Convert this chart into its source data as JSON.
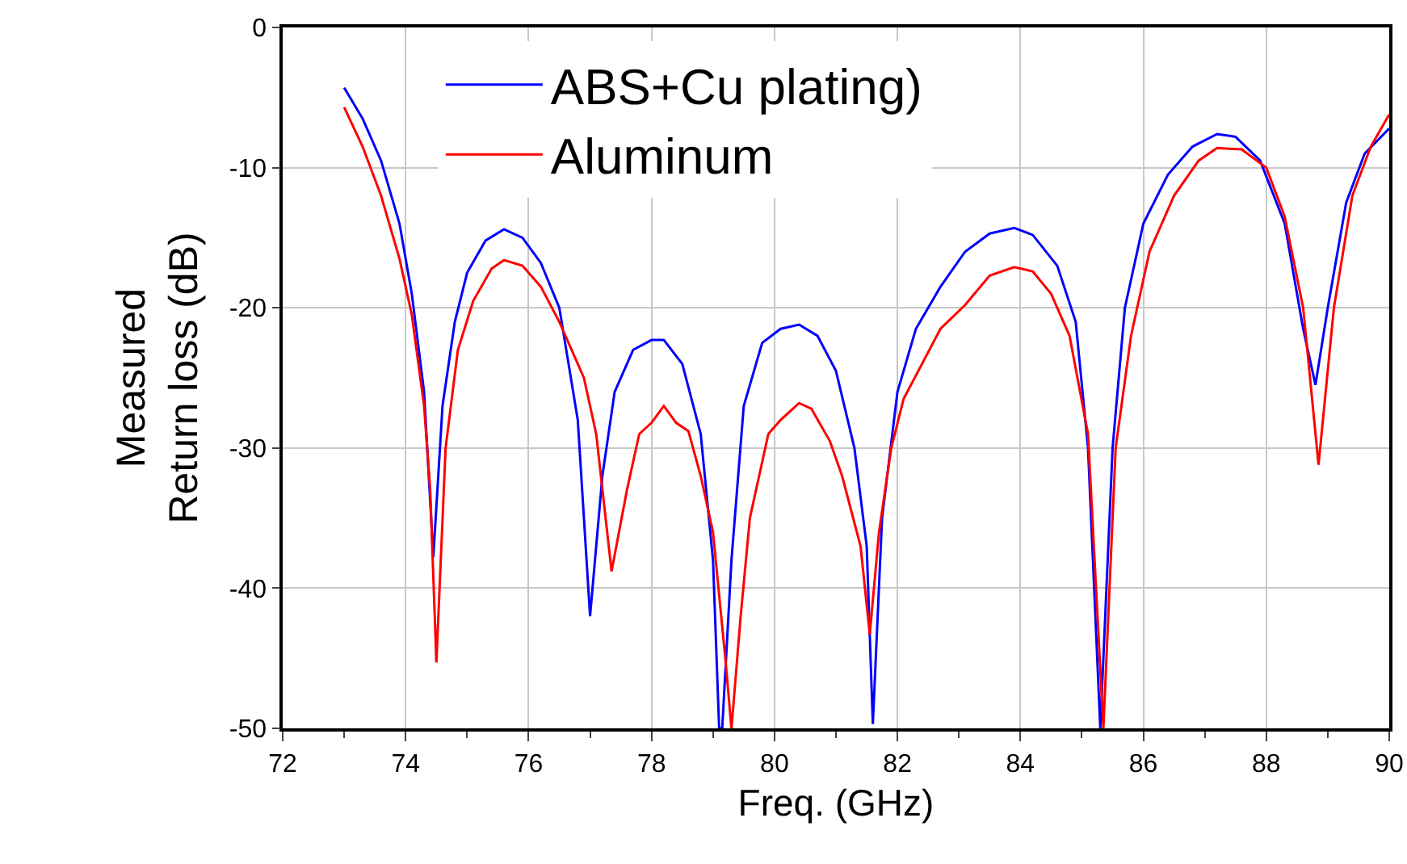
{
  "chart_data": {
    "type": "line",
    "xlabel": "Freq. (GHz)",
    "ylabel": "Measured\nReturn loss (dB)",
    "xlim": [
      72,
      90
    ],
    "xticks": [
      72,
      74,
      76,
      78,
      80,
      82,
      84,
      86,
      88,
      90
    ],
    "ylim": [
      -50,
      0
    ],
    "yticks": [
      -50,
      -40,
      -30,
      -20,
      -10,
      0
    ],
    "grid": true,
    "legend": "top",
    "line_style": "solid",
    "marker": "none",
    "series": [
      {
        "name": "ABS+Cu plating)",
        "color": "#0000ff",
        "x": [
          73.0,
          73.3,
          73.6,
          73.9,
          74.1,
          74.3,
          74.45,
          74.6,
          74.8,
          75.0,
          75.3,
          75.6,
          75.9,
          76.2,
          76.5,
          76.8,
          77.0,
          77.2,
          77.4,
          77.7,
          78.0,
          78.2,
          78.5,
          78.8,
          79.0,
          79.1,
          79.15,
          79.3,
          79.5,
          79.8,
          80.1,
          80.4,
          80.7,
          81.0,
          81.3,
          81.5,
          81.6,
          81.75,
          82.0,
          82.3,
          82.7,
          83.1,
          83.5,
          83.9,
          84.2,
          84.6,
          84.9,
          85.1,
          85.3,
          85.5,
          85.7,
          86.0,
          86.4,
          86.8,
          87.2,
          87.5,
          87.9,
          88.3,
          88.6,
          88.8,
          89.0,
          89.3,
          89.6,
          90.0
        ],
        "values": [
          -4.3,
          -6.5,
          -9.5,
          -14,
          -19,
          -26,
          -37.8,
          -27,
          -21,
          -17.5,
          -15.2,
          -14.4,
          -15,
          -16.8,
          -20,
          -28,
          -42,
          -32,
          -26,
          -23,
          -22.3,
          -22.3,
          -24,
          -29,
          -38,
          -50,
          -50,
          -38,
          -27,
          -22.5,
          -21.5,
          -21.2,
          -22,
          -24.5,
          -30,
          -37,
          -49.7,
          -35,
          -26,
          -21.5,
          -18.5,
          -16,
          -14.7,
          -14.3,
          -14.8,
          -17,
          -21,
          -30,
          -50,
          -30,
          -20,
          -14,
          -10.5,
          -8.5,
          -7.6,
          -7.8,
          -9.5,
          -14,
          -21.5,
          -25.5,
          -20,
          -12.5,
          -9,
          -7.2
        ]
      },
      {
        "name": "Aluminum",
        "color": "#ff0000",
        "x": [
          73.0,
          73.3,
          73.6,
          73.9,
          74.1,
          74.3,
          74.4,
          74.5,
          74.65,
          74.85,
          75.1,
          75.4,
          75.6,
          75.9,
          76.2,
          76.5,
          76.9,
          77.1,
          77.35,
          77.6,
          77.8,
          78.0,
          78.2,
          78.4,
          78.6,
          78.8,
          79.0,
          79.2,
          79.3,
          79.45,
          79.6,
          79.9,
          80.1,
          80.4,
          80.6,
          80.9,
          81.1,
          81.4,
          81.55,
          81.7,
          81.9,
          82.1,
          82.4,
          82.7,
          83.1,
          83.5,
          83.9,
          84.2,
          84.5,
          84.8,
          85.1,
          85.35,
          85.55,
          85.8,
          86.1,
          86.5,
          86.9,
          87.2,
          87.6,
          88.0,
          88.3,
          88.6,
          88.85,
          89.1,
          89.4,
          89.7,
          90.0
        ],
        "values": [
          -5.7,
          -8.5,
          -12,
          -16.5,
          -20.5,
          -27,
          -33,
          -45.3,
          -30,
          -23,
          -19.5,
          -17.2,
          -16.6,
          -17,
          -18.5,
          -21,
          -25,
          -29,
          -38.8,
          -33,
          -29,
          -28.2,
          -27,
          -28.2,
          -28.8,
          -32,
          -36,
          -45,
          -50,
          -42,
          -35,
          -29,
          -28,
          -26.8,
          -27.2,
          -29.5,
          -32,
          -37,
          -43.3,
          -36,
          -30,
          -26.5,
          -24,
          -21.5,
          -19.8,
          -17.7,
          -17.1,
          -17.4,
          -19,
          -22,
          -29,
          -50,
          -30,
          -22,
          -16,
          -12,
          -9.5,
          -8.6,
          -8.7,
          -10,
          -13.5,
          -20,
          -31.2,
          -20,
          -12,
          -8.5,
          -6.2
        ]
      }
    ]
  }
}
